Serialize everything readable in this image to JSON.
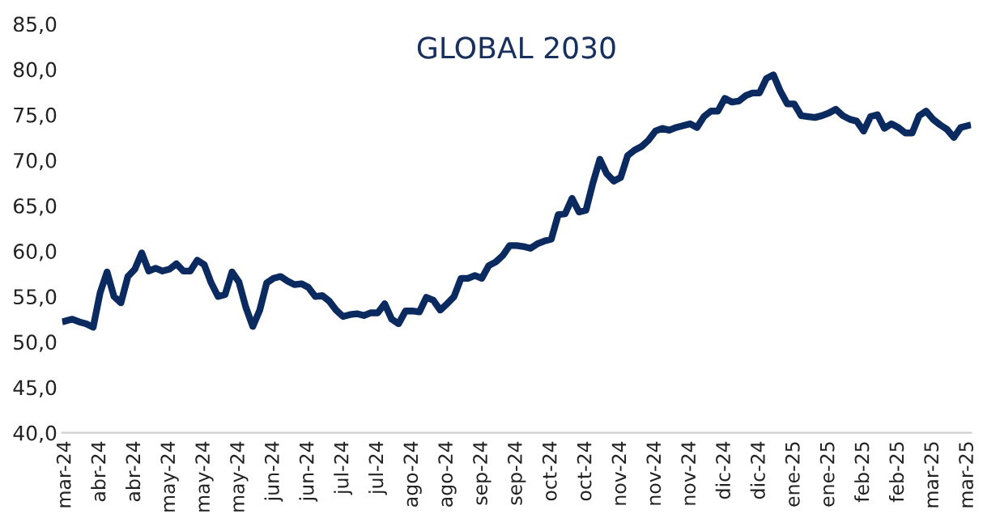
{
  "chart_data": {
    "type": "line",
    "title": "GLOBAL 2030",
    "categories": [
      "mar-24",
      null,
      null,
      null,
      null,
      "abr-24",
      null,
      null,
      null,
      null,
      "abr-24",
      null,
      null,
      null,
      null,
      "may-24",
      null,
      null,
      null,
      null,
      "may-24",
      null,
      null,
      null,
      null,
      "may-24",
      null,
      null,
      null,
      null,
      "jun-24",
      null,
      null,
      null,
      null,
      "jun-24",
      null,
      null,
      null,
      null,
      "jul-24",
      null,
      null,
      null,
      null,
      "jul-24",
      null,
      null,
      null,
      null,
      "ago-24",
      null,
      null,
      null,
      null,
      "ago-24",
      null,
      null,
      null,
      null,
      "sep-24",
      null,
      null,
      null,
      null,
      "sep-24",
      null,
      null,
      null,
      null,
      "oct-24",
      null,
      null,
      null,
      null,
      "oct-24",
      null,
      null,
      null,
      null,
      "nov-24",
      null,
      null,
      null,
      null,
      "nov-24",
      null,
      null,
      null,
      null,
      "nov-24",
      null,
      null,
      null,
      null,
      "dic-24",
      null,
      null,
      null,
      null,
      "dic-24",
      null,
      null,
      null,
      null,
      "ene-25",
      null,
      null,
      null,
      null,
      "ene-25",
      null,
      null,
      null,
      null,
      "feb-25",
      null,
      null,
      null,
      null,
      "feb-25",
      null,
      null,
      null,
      null,
      "mar-25",
      null,
      null,
      null,
      null,
      "mar-25"
    ],
    "ylim": [
      40,
      85
    ],
    "yticks": [
      {
        "value": 40,
        "label": "40,0"
      },
      {
        "value": 45,
        "label": "45,0"
      },
      {
        "value": 50,
        "label": "50,0"
      },
      {
        "value": 55,
        "label": "55,0"
      },
      {
        "value": 60,
        "label": "60,0"
      },
      {
        "value": 65,
        "label": "65,0"
      },
      {
        "value": 70,
        "label": "70,0"
      },
      {
        "value": 75,
        "label": "75,0"
      },
      {
        "value": 80,
        "label": "80,0"
      },
      {
        "value": 85,
        "label": "85,0"
      }
    ],
    "marker": "none",
    "line_style": "solid",
    "series": [
      {
        "color": "#0b2a5f",
        "values": [
          52.3,
          52.5,
          52.2,
          52.0,
          51.6,
          55.4,
          57.7,
          55.0,
          54.3,
          57.2,
          58.0,
          59.8,
          57.8,
          58.1,
          57.8,
          58.0,
          58.6,
          57.8,
          57.8,
          59.0,
          58.5,
          56.5,
          55.0,
          55.2,
          57.7,
          56.6,
          53.8,
          51.7,
          53.5,
          56.5,
          57.0,
          57.2,
          56.7,
          56.3,
          56.4,
          56.0,
          55.0,
          55.1,
          54.5,
          53.5,
          52.8,
          53.0,
          53.1,
          52.9,
          53.2,
          53.2,
          54.2,
          52.5,
          52.0,
          53.4,
          53.4,
          53.3,
          54.9,
          54.6,
          53.5,
          54.2,
          55.0,
          57.0,
          57.0,
          57.3,
          57.0,
          58.4,
          58.8,
          59.5,
          60.6,
          60.6,
          60.5,
          60.3,
          60.8,
          61.1,
          61.3,
          64.0,
          64.1,
          65.8,
          64.3,
          64.5,
          67.5,
          70.1,
          68.5,
          67.7,
          68.1,
          70.5,
          71.1,
          71.5,
          72.2,
          73.2,
          73.5,
          73.3,
          73.6,
          73.8,
          74.0,
          73.6,
          74.8,
          75.4,
          75.4,
          76.8,
          76.4,
          76.5,
          77.1,
          77.4,
          77.4,
          79.0,
          79.4,
          77.6,
          76.2,
          76.2,
          74.9,
          74.8,
          74.7,
          74.9,
          75.2,
          75.6,
          74.9,
          74.5,
          74.3,
          73.2,
          74.8,
          75.0,
          73.5,
          74.0,
          73.6,
          73.0,
          73.0,
          74.9,
          75.4,
          74.5,
          73.9,
          73.4,
          72.5,
          73.6,
          73.8
        ]
      }
    ]
  }
}
